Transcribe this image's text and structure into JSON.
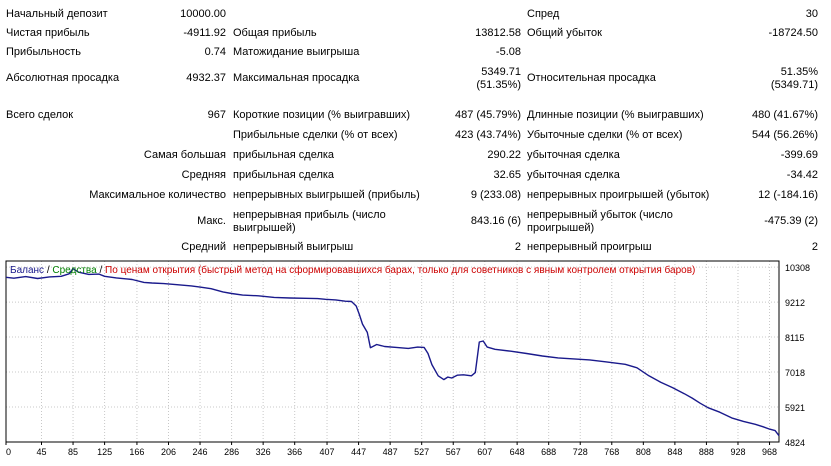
{
  "stats": {
    "initial_deposit": {
      "label": "Начальный депозит",
      "value": "10000.00"
    },
    "spread": {
      "label": "Спред",
      "value": "30"
    },
    "net_profit": {
      "label": "Чистая прибыль",
      "value": "-4911.92"
    },
    "gross_profit": {
      "label": "Общая прибыль",
      "value": "13812.58"
    },
    "gross_loss": {
      "label": "Общий убыток",
      "value": "-18724.50"
    },
    "profit_factor": {
      "label": "Прибыльность",
      "value": "0.74"
    },
    "expected_payoff": {
      "label": "Матожидание выигрыша",
      "value": "-5.08"
    },
    "abs_drawdown": {
      "label": "Абсолютная просадка",
      "value": "4932.37"
    },
    "max_drawdown": {
      "label": "Максимальная просадка",
      "value1": "5349.71",
      "value2": "(51.35%)"
    },
    "rel_drawdown": {
      "label": "Относительная просадка",
      "value1": "51.35%",
      "value2": "(5349.71)"
    },
    "total_trades": {
      "label": "Всего сделок",
      "value": "967"
    },
    "short_positions": {
      "label": "Короткие позиции (% выигравших)",
      "value": "487 (45.79%)"
    },
    "long_positions": {
      "label": "Длинные позиции (% выигравших)",
      "value": "480 (41.67%)"
    },
    "profit_trades": {
      "label": "Прибыльные сделки (% от всех)",
      "value": "423 (43.74%)"
    },
    "loss_trades": {
      "label": "Убыточные сделки (% от всех)",
      "value": "544 (56.26%)"
    },
    "largest": {
      "label": "Самая большая",
      "profit_label": "прибыльная сделка",
      "profit_value": "290.22",
      "loss_label": "убыточная сделка",
      "loss_value": "-399.69"
    },
    "average": {
      "label": "Средняя",
      "profit_label": "прибыльная сделка",
      "profit_value": "32.65",
      "loss_label": "убыточная сделка",
      "loss_value": "-34.42"
    },
    "max_consecutive": {
      "label": "Максимальное количество",
      "win_label": "непрерывных выигрышей (прибыль)",
      "win_value": "9 (233.08)",
      "loss_label": "непрерывных проигрышей (убыток)",
      "loss_value": "12 (-184.16)"
    },
    "max_consec_amount": {
      "label": "Макс.",
      "win_label1": "непрерывная прибыль (число",
      "win_label2": "выигрышей)",
      "win_value": "843.16 (6)",
      "loss_label1": "непрерывный убыток (число",
      "loss_label2": "проигрышей)",
      "loss_value": "-475.39 (2)"
    },
    "avg_consecutive": {
      "label": "Средний",
      "win_label": "непрерывный выигрыш",
      "win_value": "2",
      "loss_label": "непрерывный проигрыш",
      "loss_value": "2"
    }
  },
  "legend": {
    "balance": "Баланс",
    "sep1": " / ",
    "equity": "Средства",
    "sep2": " / ",
    "mode": "По ценам открытия (быстрый метод на сформировавшихся барах, только для советников с явным контролем открытия баров)"
  },
  "colors": {
    "balance": "#1a1a8c",
    "equity": "#008000",
    "mode": "#cc0000",
    "grid": "#c8c8c8",
    "frame": "#000000"
  },
  "chart_data": {
    "type": "line",
    "title": "",
    "xlabel": "",
    "ylabel": "",
    "xlim": [
      0,
      980
    ],
    "ylim": [
      4824,
      10500
    ],
    "x_ticks": [
      "0",
      "45",
      "85",
      "125",
      "166",
      "206",
      "246",
      "286",
      "326",
      "366",
      "407",
      "447",
      "487",
      "527",
      "567",
      "607",
      "648",
      "688",
      "728",
      "768",
      "808",
      "848",
      "888",
      "928",
      "968"
    ],
    "y_ticks": [
      "10308",
      "9212",
      "8115",
      "7018",
      "5921",
      "4824"
    ],
    "grid": true,
    "series": [
      {
        "name": "Баланс",
        "points": [
          [
            0,
            9990
          ],
          [
            10,
            9960
          ],
          [
            25,
            10010
          ],
          [
            40,
            9950
          ],
          [
            55,
            10000
          ],
          [
            70,
            10020
          ],
          [
            80,
            10100
          ],
          [
            85,
            10260
          ],
          [
            92,
            10150
          ],
          [
            105,
            10080
          ],
          [
            118,
            10090
          ],
          [
            125,
            10020
          ],
          [
            140,
            9970
          ],
          [
            160,
            9920
          ],
          [
            175,
            9830
          ],
          [
            185,
            9810
          ],
          [
            200,
            9790
          ],
          [
            215,
            9760
          ],
          [
            235,
            9720
          ],
          [
            246,
            9680
          ],
          [
            260,
            9630
          ],
          [
            275,
            9530
          ],
          [
            286,
            9480
          ],
          [
            300,
            9430
          ],
          [
            320,
            9410
          ],
          [
            340,
            9360
          ],
          [
            360,
            9340
          ],
          [
            380,
            9330
          ],
          [
            395,
            9320
          ],
          [
            405,
            9300
          ],
          [
            418,
            9280
          ],
          [
            430,
            9240
          ],
          [
            438,
            9230
          ],
          [
            444,
            9090
          ],
          [
            448,
            8820
          ],
          [
            452,
            8520
          ],
          [
            458,
            8260
          ],
          [
            462,
            7780
          ],
          [
            470,
            7880
          ],
          [
            480,
            7820
          ],
          [
            495,
            7790
          ],
          [
            510,
            7760
          ],
          [
            522,
            7800
          ],
          [
            530,
            7790
          ],
          [
            535,
            7600
          ],
          [
            540,
            7250
          ],
          [
            548,
            6900
          ],
          [
            555,
            6780
          ],
          [
            560,
            6860
          ],
          [
            565,
            6830
          ],
          [
            572,
            6920
          ],
          [
            580,
            6930
          ],
          [
            590,
            6900
          ],
          [
            595,
            7000
          ],
          [
            600,
            7960
          ],
          [
            605,
            7990
          ],
          [
            610,
            7800
          ],
          [
            620,
            7730
          ],
          [
            640,
            7670
          ],
          [
            660,
            7600
          ],
          [
            680,
            7520
          ],
          [
            700,
            7460
          ],
          [
            720,
            7430
          ],
          [
            740,
            7400
          ],
          [
            760,
            7340
          ],
          [
            785,
            7260
          ],
          [
            800,
            7150
          ],
          [
            815,
            6900
          ],
          [
            830,
            6700
          ],
          [
            845,
            6530
          ],
          [
            860,
            6340
          ],
          [
            870,
            6200
          ],
          [
            880,
            6040
          ],
          [
            890,
            5900
          ],
          [
            905,
            5760
          ],
          [
            920,
            5580
          ],
          [
            935,
            5470
          ],
          [
            950,
            5380
          ],
          [
            960,
            5300
          ],
          [
            968,
            5230
          ],
          [
            975,
            5180
          ],
          [
            980,
            5020
          ]
        ]
      }
    ]
  }
}
